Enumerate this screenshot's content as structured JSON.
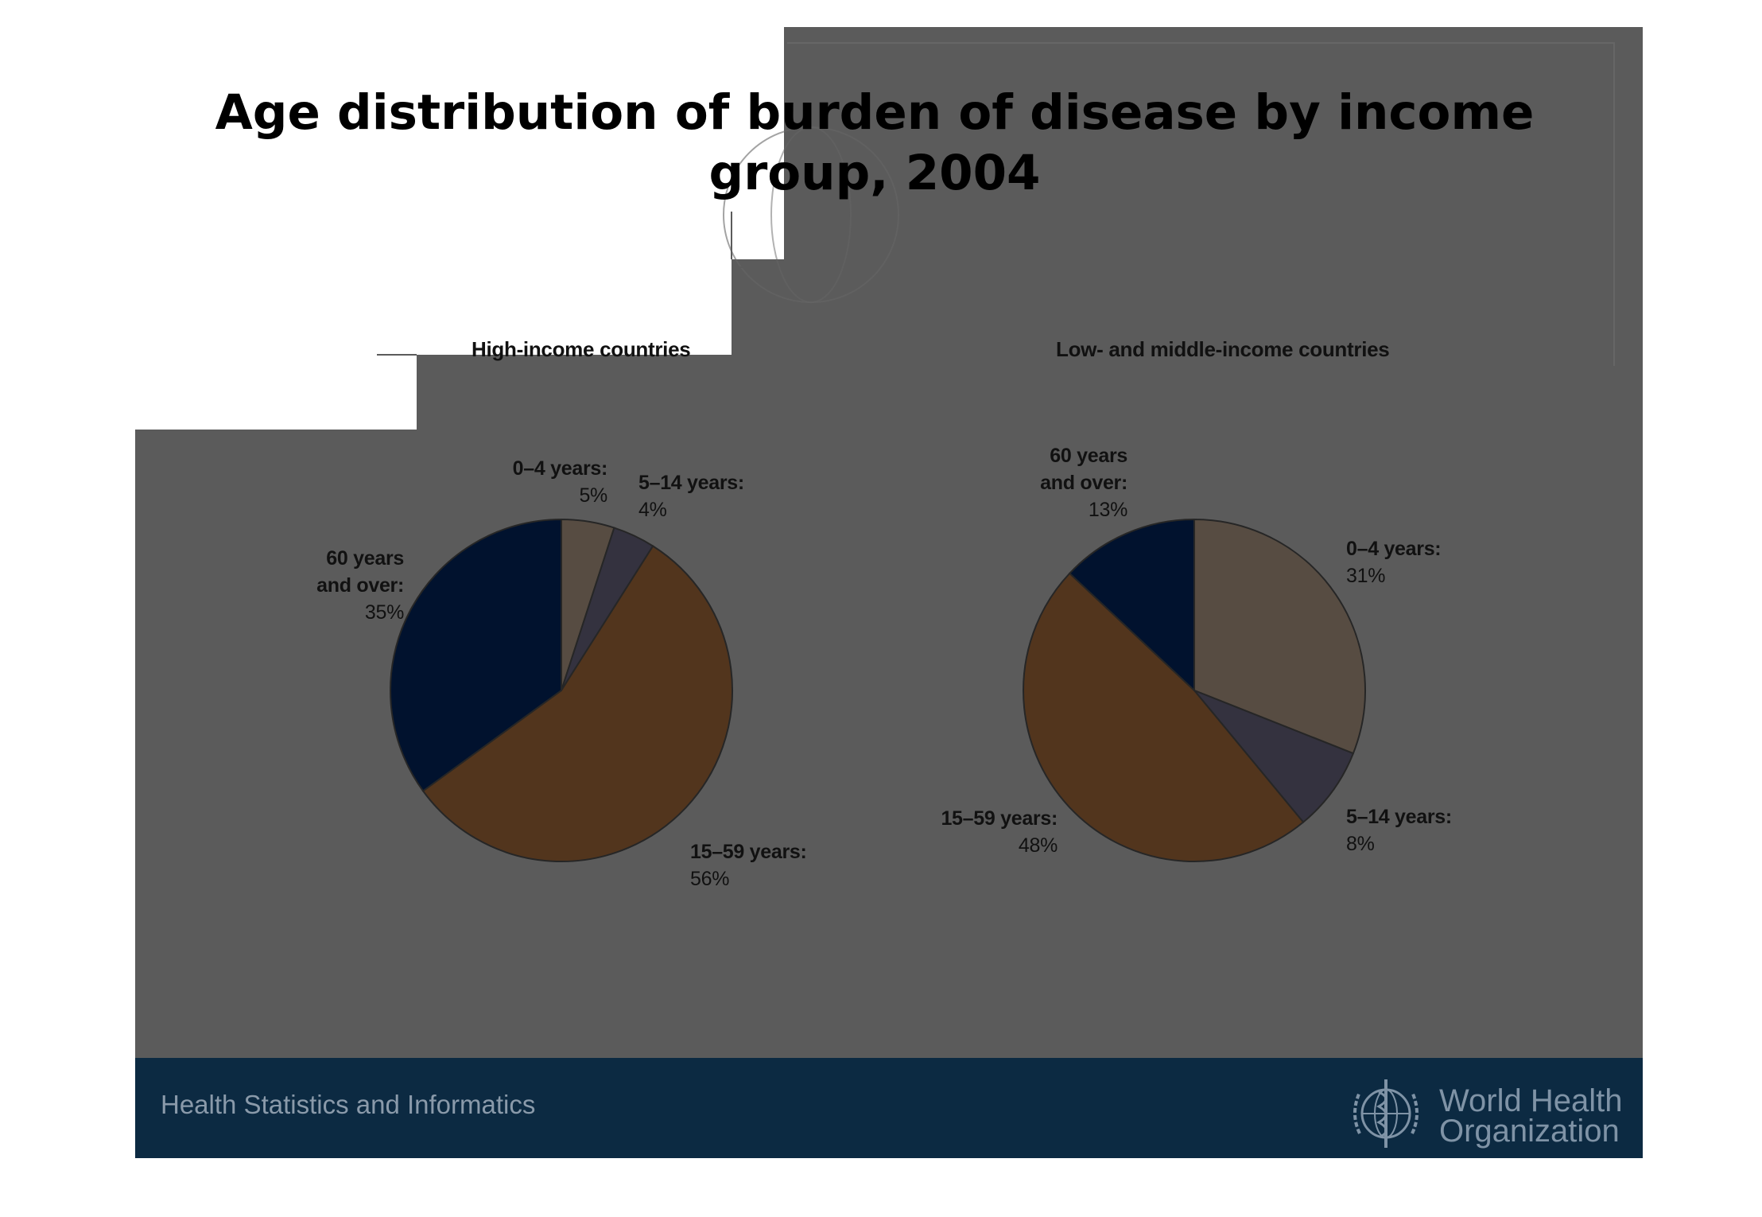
{
  "title": "Age distribution of burden of disease by income group, 2004",
  "footer": {
    "unit": "Health Statistics and Informatics",
    "logo_text_line1": "World Health",
    "logo_text_line2": "Organization",
    "logo_icon": "who-emblem-icon"
  },
  "colors": {
    "slide_bg": "#5b5b5b",
    "footer_bg": "#0c2a42",
    "age_0_4": "#574c42",
    "age_5_14": "#34323f",
    "age_15_59": "#52351d",
    "age_60_plus": "#01122e"
  },
  "chart_data": [
    {
      "type": "pie",
      "title": "High-income countries",
      "start_angle_deg": 0,
      "direction": "clockwise",
      "slices": [
        {
          "label": "0–4 years:",
          "value": 5,
          "display": "5%",
          "color": "#574c42"
        },
        {
          "label": "5–14 years:",
          "value": 4,
          "display": "4%",
          "color": "#34323f"
        },
        {
          "label": "15–59 years:",
          "value": 56,
          "display": "56%",
          "color": "#52351d"
        },
        {
          "label": "60 years and over:",
          "label_line1": "60 years",
          "label_line2": "and over:",
          "value": 35,
          "display": "35%",
          "color": "#01122e"
        }
      ]
    },
    {
      "type": "pie",
      "title": "Low- and middle-income countries",
      "start_angle_deg": 0,
      "direction": "clockwise",
      "slices": [
        {
          "label": "0–4 years:",
          "value": 31,
          "display": "31%",
          "color": "#574c42"
        },
        {
          "label": "5–14 years:",
          "value": 8,
          "display": "8%",
          "color": "#34323f"
        },
        {
          "label": "15–59 years:",
          "value": 48,
          "display": "48%",
          "color": "#52351d"
        },
        {
          "label": "60 years and over:",
          "label_line1": "60 years",
          "label_line2": "and over:",
          "value": 13,
          "display": "13%",
          "color": "#01122e"
        }
      ]
    }
  ]
}
